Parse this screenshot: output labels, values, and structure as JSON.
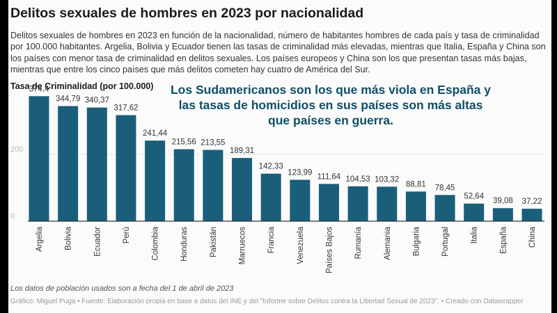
{
  "header": {
    "title": "Delitos sexuales de hombres en 2023 por nacionalidad",
    "description": "Delitos sexuales de hombres en 2023 en función de la nacionalidad, número de habitantes hombres de cada país y tasa de criminalidad por 100.000 habitantes. Argelia, Bolivia y Ecuador tienen las tasas de criminalidad más elevadas, mientras que Italia, España y China son los países con menor tasa de criminalidad en delitos sexuales. Los países europeos y China son los que presentan tasas más bajas, mientras que entre los cinco países que más delitos cometen hay cuatro de América del Sur."
  },
  "annotation": "Los Sudamericanos son los que más viola en España y las tasas de homicidios en sus países son más altas que países en guerra.",
  "footer": {
    "note": "Los datos de población usados son a fecha del 1 de abril de 2023",
    "credit": "Gráfico: Miguel Puga • Fuente: Elaboración propia en base a datos del INE y del \"Informe sobre Delitos contra la Libertad Sexual de 2023\". • Creado con Datawrapper"
  },
  "colors": {
    "bar": "#1a5e7a",
    "annotation": "#0f4f67",
    "axis": "#333333",
    "grid": "#e6e6e6"
  },
  "chart_data": {
    "type": "bar",
    "title": "Delitos sexuales de hombres en 2023 por nacionalidad",
    "xlabel": "",
    "ylabel": "Tasa de Criminalidad (por 100.000)",
    "ylim": [
      0,
      400
    ],
    "yticks": [
      0,
      200
    ],
    "ytick_labels": [
      "0",
      "200"
    ],
    "grid": true,
    "categories": [
      "Argelia",
      "Bolivia",
      "Ecuador",
      "Perú",
      "Colombia",
      "Honduras",
      "Pakistán",
      "Marruecos",
      "Francia",
      "Venezuela",
      "Países Bajos",
      "Rumanía",
      "Alemania",
      "Bulgaria",
      "Portugal",
      "Italia",
      "España",
      "China"
    ],
    "values": [
      374.4,
      344.79,
      340.37,
      317.62,
      241.44,
      215.56,
      213.55,
      189.31,
      142.33,
      123.99,
      111.64,
      104.53,
      103.32,
      88.81,
      78.45,
      52.64,
      39.08,
      37.22
    ],
    "value_labels": [
      "374,4",
      "344,79",
      "340,37",
      "317,62",
      "241,44",
      "215,56",
      "213,55",
      "189,31",
      "142,33",
      "123,99",
      "111,64",
      "104,53",
      "103,32",
      "88,81",
      "78,45",
      "52,64",
      "39,08",
      "37,22"
    ]
  }
}
